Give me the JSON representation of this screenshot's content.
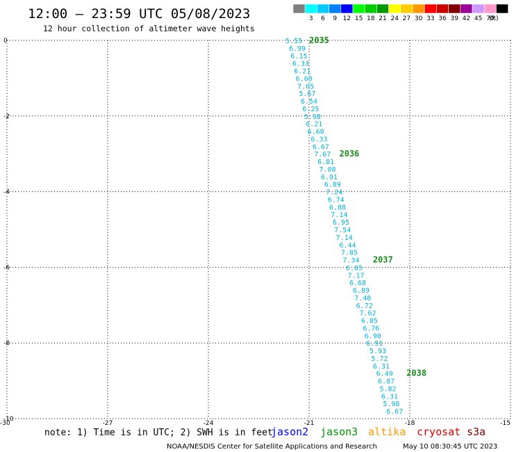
{
  "header": {
    "title": "12:00 – 23:59 UTC 05/08/2023",
    "subtitle": "12 hour collection of altimeter wave heights"
  },
  "color_scale": {
    "unit": "(ft)",
    "bins": [
      {
        "label": "",
        "color": "#808080"
      },
      {
        "label": "3",
        "color": "#00ffff"
      },
      {
        "label": "6",
        "color": "#00ccff"
      },
      {
        "label": "9",
        "color": "#0080ff"
      },
      {
        "label": "12",
        "color": "#0000ff"
      },
      {
        "label": "15",
        "color": "#00ff00"
      },
      {
        "label": "18",
        "color": "#00cc00"
      },
      {
        "label": "21",
        "color": "#009900"
      },
      {
        "label": "24",
        "color": "#ffff00"
      },
      {
        "label": "27",
        "color": "#ffcc00"
      },
      {
        "label": "30",
        "color": "#ff9900"
      },
      {
        "label": "33",
        "color": "#ff0000"
      },
      {
        "label": "36",
        "color": "#cc0000"
      },
      {
        "label": "39",
        "color": "#800000"
      },
      {
        "label": "42",
        "color": "#990099"
      },
      {
        "label": "45",
        "color": "#cc99ff"
      },
      {
        "label": "70",
        "color": "#ff99cc"
      },
      {
        "label": "",
        "color": "#000000"
      }
    ]
  },
  "chart_data": {
    "type": "scatter",
    "xlim": [
      -30,
      -15
    ],
    "ylim": [
      -10,
      0
    ],
    "x_ticks": [
      "-30",
      "-27",
      "-24",
      "-21",
      "-18",
      "-15"
    ],
    "y_ticks": [
      "0",
      "-2",
      "-4",
      "-6",
      "-8",
      "-10"
    ],
    "grid": true,
    "point_color": "#00b4d8",
    "points": [
      {
        "x": -21.7,
        "y": 0.0,
        "label": "5.55"
      },
      {
        "x": -21.6,
        "y": -0.2,
        "label": "6.99"
      },
      {
        "x": -21.55,
        "y": -0.4,
        "label": "6.15"
      },
      {
        "x": -21.5,
        "y": -0.6,
        "label": "6.33"
      },
      {
        "x": -21.45,
        "y": -0.8,
        "label": "6.21"
      },
      {
        "x": -21.4,
        "y": -1.0,
        "label": "6.60"
      },
      {
        "x": -21.35,
        "y": -1.2,
        "label": "7.05"
      },
      {
        "x": -21.3,
        "y": -1.4,
        "label": "5.67"
      },
      {
        "x": -21.25,
        "y": -1.6,
        "label": "6.54"
      },
      {
        "x": -21.2,
        "y": -1.8,
        "label": "6.25"
      },
      {
        "x": -21.15,
        "y": -2.0,
        "label": "5.98"
      },
      {
        "x": -21.1,
        "y": -2.2,
        "label": "6.21"
      },
      {
        "x": -21.05,
        "y": -2.4,
        "label": "6.60"
      },
      {
        "x": -20.95,
        "y": -2.6,
        "label": "6.33"
      },
      {
        "x": -20.9,
        "y": -2.8,
        "label": "6.67"
      },
      {
        "x": -20.85,
        "y": -3.0,
        "label": "7.67"
      },
      {
        "x": -20.75,
        "y": -3.2,
        "label": "6.81"
      },
      {
        "x": -20.7,
        "y": -3.4,
        "label": "7.08"
      },
      {
        "x": -20.65,
        "y": -3.6,
        "label": "6.91"
      },
      {
        "x": -20.55,
        "y": -3.8,
        "label": "6.89"
      },
      {
        "x": -20.5,
        "y": -4.0,
        "label": "7.24"
      },
      {
        "x": -20.45,
        "y": -4.2,
        "label": "6.74"
      },
      {
        "x": -20.4,
        "y": -4.4,
        "label": "6.88"
      },
      {
        "x": -20.35,
        "y": -4.6,
        "label": "7.14"
      },
      {
        "x": -20.3,
        "y": -4.8,
        "label": "6.95"
      },
      {
        "x": -20.25,
        "y": -5.0,
        "label": "7.54"
      },
      {
        "x": -20.2,
        "y": -5.2,
        "label": "7.14"
      },
      {
        "x": -20.1,
        "y": -5.4,
        "label": "6.44"
      },
      {
        "x": -20.05,
        "y": -5.6,
        "label": "7.85"
      },
      {
        "x": -20.0,
        "y": -5.8,
        "label": "7.34"
      },
      {
        "x": -19.9,
        "y": -6.0,
        "label": "6.85"
      },
      {
        "x": -19.85,
        "y": -6.2,
        "label": "7.17"
      },
      {
        "x": -19.8,
        "y": -6.4,
        "label": "6.68"
      },
      {
        "x": -19.7,
        "y": -6.6,
        "label": "6.89"
      },
      {
        "x": -19.65,
        "y": -6.8,
        "label": "7.48"
      },
      {
        "x": -19.6,
        "y": -7.0,
        "label": "6.72"
      },
      {
        "x": -19.5,
        "y": -7.2,
        "label": "7.62"
      },
      {
        "x": -19.45,
        "y": -7.4,
        "label": "6.85"
      },
      {
        "x": -19.4,
        "y": -7.6,
        "label": "6.76"
      },
      {
        "x": -19.35,
        "y": -7.8,
        "label": "6.90"
      },
      {
        "x": -19.3,
        "y": -8.0,
        "label": "6.91"
      },
      {
        "x": -19.2,
        "y": -8.2,
        "label": "5.93"
      },
      {
        "x": -19.15,
        "y": -8.4,
        "label": "5.72"
      },
      {
        "x": -19.1,
        "y": -8.6,
        "label": "6.31"
      },
      {
        "x": -19.0,
        "y": -8.8,
        "label": "6.49"
      },
      {
        "x": -18.95,
        "y": -9.0,
        "label": "6.87"
      },
      {
        "x": -18.9,
        "y": -9.2,
        "label": "5.82"
      },
      {
        "x": -18.85,
        "y": -9.4,
        "label": "6.31"
      },
      {
        "x": -18.8,
        "y": -9.6,
        "label": "5.98"
      },
      {
        "x": -18.7,
        "y": -9.8,
        "label": "6.67"
      }
    ],
    "pass_labels": [
      {
        "x": -21.0,
        "y": 0.0,
        "label": "2035"
      },
      {
        "x": -20.1,
        "y": -3.0,
        "label": "2036"
      },
      {
        "x": -19.1,
        "y": -5.8,
        "label": "2037"
      },
      {
        "x": -18.1,
        "y": -8.8,
        "label": "2038"
      }
    ]
  },
  "footer": {
    "note": "note: 1) Time is in UTC; 2) SWH is in feet",
    "satellites": [
      {
        "name": "jason2",
        "color": "#0000ff"
      },
      {
        "name": "jason3",
        "color": "#009900"
      },
      {
        "name": "altika",
        "color": "#ff9900"
      },
      {
        "name": "cryosat",
        "color": "#dd0000"
      },
      {
        "name": "s3a",
        "color": "#800000"
      }
    ],
    "credit": "NOAA/NESDIS Center for Satellite Applications and Research",
    "timestamp": "May 10 08:30:45 UTC 2023"
  }
}
